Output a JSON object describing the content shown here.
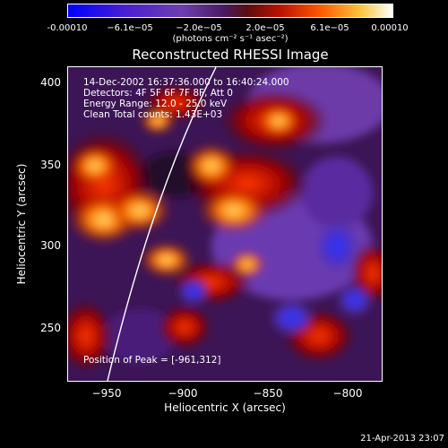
{
  "colorbar": {
    "tick_labels": [
      "-0.00010",
      "−6.1e−05",
      "−2.0e−05",
      "2.0e−05",
      "6.1e−05",
      "0.00010"
    ],
    "units": "(photons cm⁻² s⁻¹ asec⁻²)"
  },
  "title": "Reconstructed RHESSI Image",
  "info": {
    "line1": "14-Dec-2002 16:37:36.000 to 16:40:24.000",
    "line2": "Detectors: 4F 5F 6F 7F 8F, Att 0",
    "line3": "Energy Range: 12.0 - 25.0 keV",
    "line4": "Clean     Total counts: 1.43E+03",
    "peak": "Position of Peak = [-961,312]"
  },
  "axes": {
    "xlabel": "Heliocentric X (arcsec)",
    "ylabel": "Heliocentric Y (arcsec)",
    "xticks": [
      "−950",
      "−900",
      "−850",
      "−800"
    ],
    "yticks": [
      "400",
      "350",
      "300",
      "250"
    ]
  },
  "timestamp": "21-Apr-2013 23:07"
}
